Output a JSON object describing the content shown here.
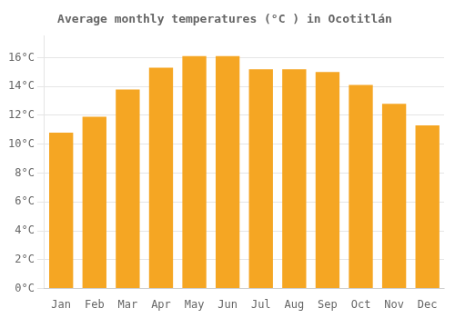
{
  "chart_data": {
    "type": "bar",
    "title": "Average monthly temperatures (°C ) in Ocotitlán",
    "categories": [
      "Jan",
      "Feb",
      "Mar",
      "Apr",
      "May",
      "Jun",
      "Jul",
      "Aug",
      "Sep",
      "Oct",
      "Nov",
      "Dec"
    ],
    "values": [
      10.8,
      11.9,
      13.8,
      15.3,
      16.1,
      16.1,
      15.2,
      15.2,
      15.0,
      14.1,
      12.8,
      11.3
    ],
    "color": "#F5A623",
    "ylim": [
      0,
      17.5
    ],
    "yticks": [
      {
        "value": 0,
        "label": "0°C"
      },
      {
        "value": 2,
        "label": "2°C"
      },
      {
        "value": 4,
        "label": "4°C"
      },
      {
        "value": 6,
        "label": "6°C"
      },
      {
        "value": 8,
        "label": "8°C"
      },
      {
        "value": 10,
        "label": "10°C"
      },
      {
        "value": 12,
        "label": "12°C"
      },
      {
        "value": 14,
        "label": "14°C"
      },
      {
        "value": 16,
        "label": "16°C"
      }
    ],
    "grid": true
  }
}
